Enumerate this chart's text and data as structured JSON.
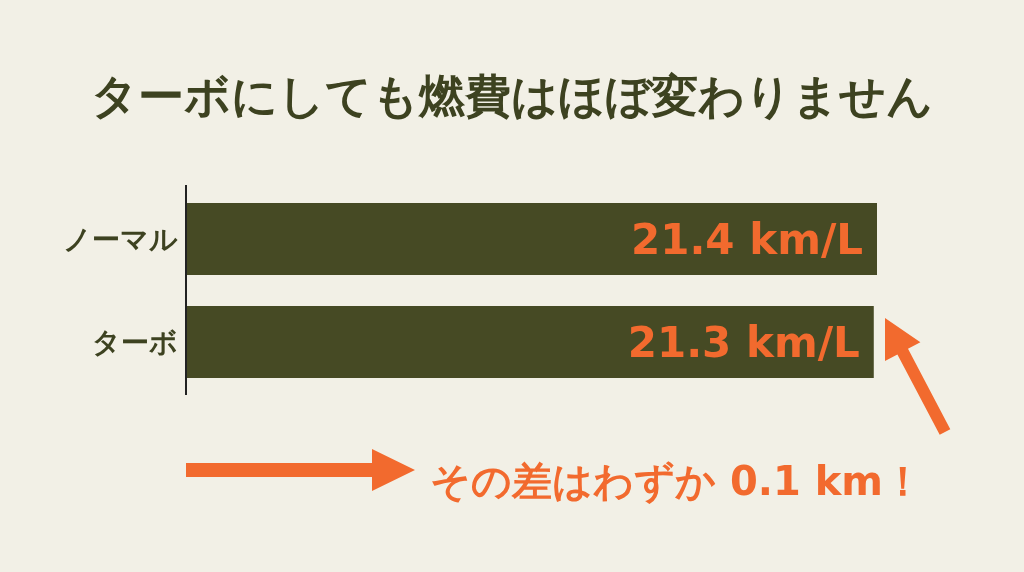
{
  "chart_data": {
    "type": "bar",
    "orientation": "horizontal",
    "title": "ターボにしても燃費はほぼ変わりません",
    "categories": [
      "ノーマル",
      "ターボ"
    ],
    "values": [
      21.4,
      21.3
    ],
    "value_labels": [
      "21.4 km/L",
      "21.3 km/L"
    ],
    "color": "#464a24",
    "annotations": [
      "その差はわずか 0.1 km！"
    ]
  }
}
